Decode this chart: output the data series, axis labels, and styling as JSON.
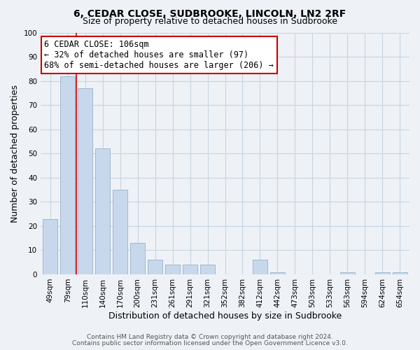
{
  "title": "6, CEDAR CLOSE, SUDBROOKE, LINCOLN, LN2 2RF",
  "subtitle": "Size of property relative to detached houses in Sudbrooke",
  "xlabel": "Distribution of detached houses by size in Sudbrooke",
  "ylabel": "Number of detached properties",
  "footer_line1": "Contains HM Land Registry data © Crown copyright and database right 2024.",
  "footer_line2": "Contains public sector information licensed under the Open Government Licence v3.0.",
  "bar_labels": [
    "49sqm",
    "79sqm",
    "110sqm",
    "140sqm",
    "170sqm",
    "200sqm",
    "231sqm",
    "261sqm",
    "291sqm",
    "321sqm",
    "352sqm",
    "382sqm",
    "412sqm",
    "442sqm",
    "473sqm",
    "503sqm",
    "533sqm",
    "563sqm",
    "594sqm",
    "624sqm",
    "654sqm"
  ],
  "bar_values": [
    23,
    82,
    77,
    52,
    35,
    13,
    6,
    4,
    4,
    4,
    0,
    0,
    6,
    1,
    0,
    0,
    0,
    1,
    0,
    1,
    1
  ],
  "bar_color": "#c8d8ec",
  "bar_edge_color": "#a0b8cc",
  "redline_index": 2,
  "ylim": [
    0,
    100
  ],
  "yticks": [
    0,
    10,
    20,
    30,
    40,
    50,
    60,
    70,
    80,
    90,
    100
  ],
  "annotation_title": "6 CEDAR CLOSE: 106sqm",
  "annotation_line1": "← 32% of detached houses are smaller (97)",
  "annotation_line2": "68% of semi-detached houses are larger (206) →",
  "annotation_box_color": "#ffffff",
  "annotation_box_edge": "#cc0000",
  "bg_color": "#eef2f7",
  "plot_bg_color": "#eef2f7",
  "grid_color": "#c8d4e0",
  "title_fontsize": 10,
  "subtitle_fontsize": 9,
  "axis_label_fontsize": 9,
  "tick_fontsize": 7.5,
  "annotation_fontsize": 8.5,
  "footer_fontsize": 6.5
}
